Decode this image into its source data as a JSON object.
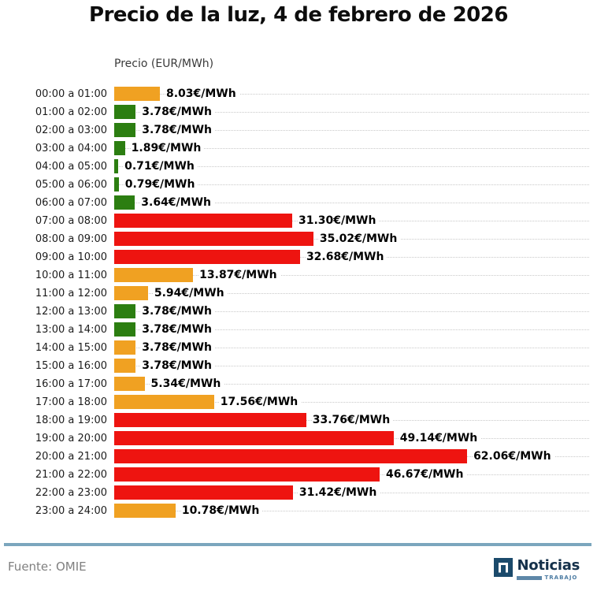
{
  "chart_data": {
    "type": "bar",
    "orientation": "horizontal",
    "title": "Precio de la luz, 4 de febrero de 2026",
    "value_axis_label": "Precio (EUR/MWh)",
    "unit": "EUR/MWh",
    "value_range": [
      0,
      62.06
    ],
    "grid": "horizontal dotted per category",
    "legend": "none",
    "categories": [
      "00:00 a 01:00",
      "01:00 a 02:00",
      "02:00 a 03:00",
      "03:00 a 04:00",
      "04:00 a 05:00",
      "05:00 a 06:00",
      "06:00 a 07:00",
      "07:00 a 08:00",
      "08:00 a 09:00",
      "09:00 a 10:00",
      "10:00 a 11:00",
      "11:00 a 12:00",
      "12:00 a 13:00",
      "13:00 a 14:00",
      "14:00 a 15:00",
      "15:00 a 16:00",
      "16:00 a 17:00",
      "17:00 a 18:00",
      "18:00 a 19:00",
      "19:00 a 20:00",
      "20:00 a 21:00",
      "21:00 a 22:00",
      "22:00 a 23:00",
      "23:00 a 24:00"
    ],
    "values": [
      8.03,
      3.78,
      3.78,
      1.89,
      0.71,
      0.79,
      3.64,
      31.3,
      35.02,
      32.68,
      13.87,
      5.94,
      3.78,
      3.78,
      3.78,
      3.78,
      5.34,
      17.56,
      33.76,
      49.14,
      62.06,
      46.67,
      31.42,
      10.78
    ],
    "value_labels": [
      "8.03€/MWh",
      "3.78€/MWh",
      "3.78€/MWh",
      "1.89€/MWh",
      "0.71€/MWh",
      "0.79€/MWh",
      "3.64€/MWh",
      "31.30€/MWh",
      "35.02€/MWh",
      "32.68€/MWh",
      "13.87€/MWh",
      "5.94€/MWh",
      "3.78€/MWh",
      "3.78€/MWh",
      "3.78€/MWh",
      "3.78€/MWh",
      "5.34€/MWh",
      "17.56€/MWh",
      "33.76€/MWh",
      "49.14€/MWh",
      "62.06€/MWh",
      "46.67€/MWh",
      "31.42€/MWh",
      "10.78€/MWh"
    ],
    "bar_levels": [
      "orange",
      "green",
      "green",
      "green",
      "green",
      "green",
      "green",
      "red",
      "red",
      "red",
      "orange",
      "orange",
      "green",
      "green",
      "orange",
      "orange",
      "orange",
      "orange",
      "red",
      "red",
      "red",
      "red",
      "red",
      "orange"
    ],
    "color_map": {
      "green": "#2C7E11",
      "orange": "#F0A122",
      "red": "#EE1410"
    }
  },
  "footer": {
    "source": "Fuente: OMIE",
    "divider_color": "#7BA6BD",
    "logo": {
      "name": "Noticias",
      "tagline": "TRABAJO",
      "mark_icon": "n-square-icon",
      "navy": "#1B4A6B",
      "text_navy": "#14304A",
      "blue": "#4D7CA3",
      "bar_blue": "#5E87A8"
    }
  }
}
